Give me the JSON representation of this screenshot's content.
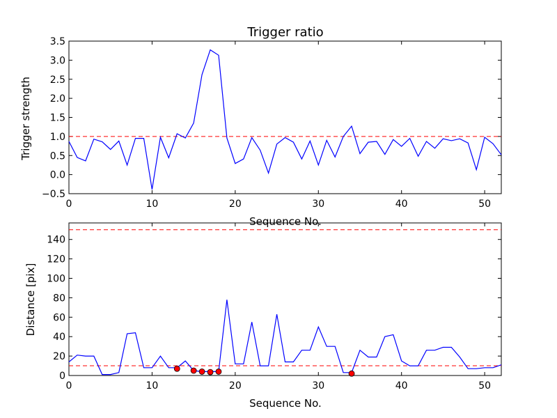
{
  "chart_data": [
    {
      "type": "line",
      "title": "Trigger ratio",
      "xlabel": "Sequence No.",
      "ylabel": "Trigger strength",
      "xlim": [
        0,
        52
      ],
      "ylim": [
        -0.5,
        3.5
      ],
      "xticks": [
        "0",
        "10",
        "20",
        "30",
        "40",
        "50"
      ],
      "yticks": [
        "−0.5",
        "0.0",
        "0.5",
        "1.0",
        "1.5",
        "2.0",
        "2.5",
        "3.0",
        "3.5"
      ],
      "grid": false,
      "series": [
        {
          "color": "#0000ff",
          "x": [
            0,
            1,
            2,
            3,
            4,
            5,
            6,
            7,
            8,
            9,
            10,
            11,
            12,
            13,
            14,
            15,
            16,
            17,
            18,
            19,
            20,
            21,
            22,
            23,
            24,
            25,
            26,
            27,
            28,
            29,
            30,
            31,
            32,
            33,
            34,
            35,
            36,
            37,
            38,
            39,
            40,
            41,
            42,
            43,
            44,
            45,
            46,
            47,
            48,
            49,
            50,
            51,
            52
          ],
          "y": [
            0.87,
            0.45,
            0.36,
            0.93,
            0.86,
            0.66,
            0.88,
            0.25,
            0.95,
            0.95,
            -0.39,
            0.98,
            0.44,
            1.07,
            0.96,
            1.35,
            2.62,
            3.27,
            3.13,
            0.96,
            0.29,
            0.41,
            0.97,
            0.64,
            0.04,
            0.8,
            0.97,
            0.85,
            0.41,
            0.88,
            0.25,
            0.9,
            0.46,
            1.0,
            1.27,
            0.55,
            0.85,
            0.87,
            0.53,
            0.92,
            0.74,
            0.95,
            0.48,
            0.87,
            0.69,
            0.94,
            0.89,
            0.94,
            0.83,
            0.13,
            0.98,
            0.81,
            0.52
          ]
        }
      ],
      "reference_lines": [
        {
          "y": 1.0,
          "color": "#ff0000",
          "style": "dashed"
        }
      ]
    },
    {
      "type": "line",
      "xlabel": "Sequence No.",
      "ylabel": "Distance [pix]",
      "xlim": [
        0,
        52
      ],
      "ylim": [
        0,
        157
      ],
      "xticks": [
        "0",
        "10",
        "20",
        "30",
        "40",
        "50"
      ],
      "yticks": [
        "0",
        "20",
        "40",
        "60",
        "80",
        "100",
        "120",
        "140"
      ],
      "grid": false,
      "series": [
        {
          "color": "#0000ff",
          "x": [
            0,
            1,
            2,
            3,
            4,
            5,
            6,
            7,
            8,
            9,
            10,
            11,
            12,
            13,
            14,
            15,
            16,
            17,
            18,
            19,
            20,
            21,
            22,
            23,
            24,
            25,
            26,
            27,
            28,
            29,
            30,
            31,
            32,
            33,
            34,
            35,
            36,
            37,
            38,
            39,
            40,
            41,
            42,
            43,
            44,
            45,
            46,
            47,
            48,
            49,
            50,
            51,
            52
          ],
          "y": [
            14,
            21,
            20,
            20,
            1,
            1,
            3,
            43,
            44,
            8,
            8,
            20,
            8,
            8,
            15,
            5,
            4,
            4,
            4,
            78,
            12,
            12,
            55,
            10,
            10,
            63,
            14,
            14,
            26,
            26,
            50,
            30,
            30,
            3,
            3,
            26,
            19,
            19,
            40,
            42,
            15,
            10,
            10,
            26,
            26,
            29,
            29,
            19,
            7,
            7,
            8,
            8,
            11
          ]
        },
        {
          "color": "#ff0000",
          "marker": "circle",
          "points": [
            {
              "x": 13,
              "y": 7
            },
            {
              "x": 15,
              "y": 5
            },
            {
              "x": 16,
              "y": 4
            },
            {
              "x": 17,
              "y": 3.5
            },
            {
              "x": 18,
              "y": 4
            },
            {
              "x": 34,
              "y": 2
            }
          ]
        }
      ],
      "reference_lines": [
        {
          "y": 10,
          "color": "#ff0000",
          "style": "dashed"
        },
        {
          "y": 150,
          "color": "#ff0000",
          "style": "dashed"
        }
      ]
    }
  ]
}
